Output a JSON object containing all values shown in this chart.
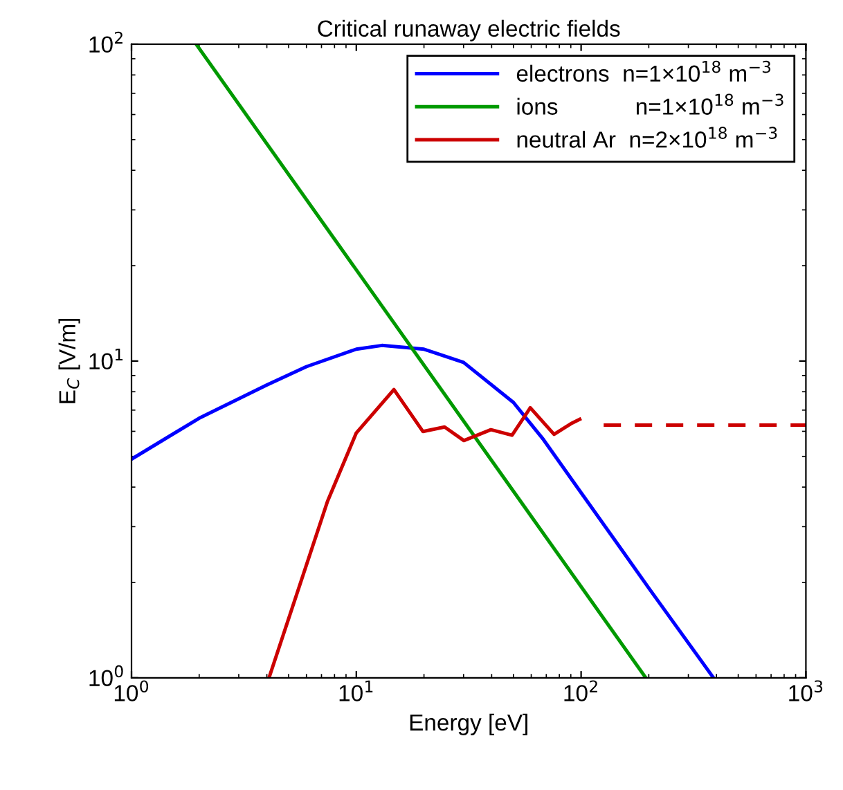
{
  "chart_data": {
    "type": "line",
    "title": "Critical runaway electric fields",
    "xlabel": "Energy [eV]",
    "ylabel": "E$_{C}$ [V/m]",
    "log": "xy",
    "xlim": [
      1,
      1000
    ],
    "ylim": [
      1,
      100
    ],
    "xticks": [
      {
        "value": 1,
        "label": "10$^{0}$"
      },
      {
        "value": 10,
        "label": "10$^{1}$"
      },
      {
        "value": 100,
        "label": "10$^{2}$"
      },
      {
        "value": 1000,
        "label": "10$^{3}$"
      }
    ],
    "yticks": [
      {
        "value": 1,
        "label": "10$^{0}$"
      },
      {
        "value": 10,
        "label": "10$^{1}$"
      },
      {
        "value": 100,
        "label": "10$^{2}$"
      }
    ],
    "grid": false,
    "legend": "top right",
    "line_style": "solid",
    "series": [
      {
        "name": "electrons  n=1×10$^{18}$ m$^{−3}$",
        "color": "#0000ff",
        "x": [
          1,
          2,
          4,
          6,
          10,
          13,
          20,
          30,
          50,
          68,
          100,
          155,
          200,
          388
        ],
        "values": [
          4.9,
          6.6,
          8.4,
          9.6,
          10.9,
          11.2,
          10.9,
          9.9,
          7.4,
          5.65,
          3.84,
          2.48,
          1.92,
          1.0
        ]
      },
      {
        "name": "ions            n=1×10$^{18}$ m$^{−3}$",
        "color": "#009900",
        "x": [
          1.94,
          194
        ],
        "values": [
          100,
          1
        ]
      },
      {
        "name": "neutral Ar  n=2×10$^{18}$ m$^{−3}$",
        "color": "#cc0000",
        "x": [
          4.09,
          7.44,
          10,
          14.7,
          19.8,
          24.7,
          30.1,
          39.7,
          49.3,
          59.4,
          75.8,
          90,
          98.6
        ],
        "values": [
          1.0,
          3.6,
          5.93,
          8.13,
          5.99,
          6.19,
          5.61,
          6.07,
          5.83,
          7.12,
          5.87,
          6.34,
          6.55
        ]
      },
      {
        "color": "#cc0000",
        "line_style": "dashed",
        "x": [
          126,
          1000
        ],
        "values": [
          6.28,
          6.28
        ]
      }
    ]
  }
}
